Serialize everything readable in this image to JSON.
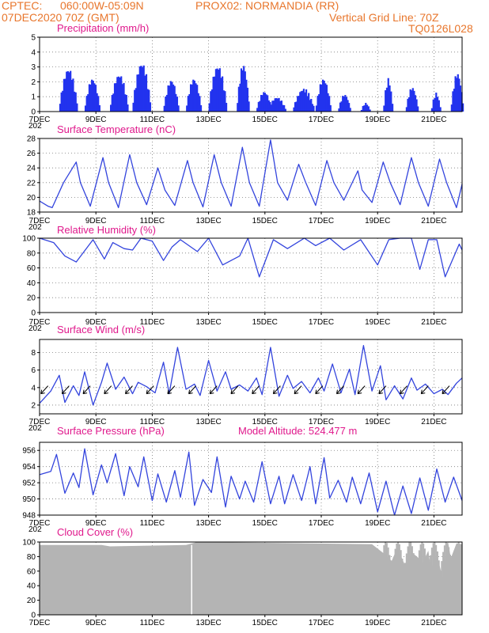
{
  "header": {
    "line1_left": "CPTEC:",
    "line1_coords": "060:00W-05:09N",
    "line1_station": "PROX02: NORMANDIA (RR)",
    "line2_left": "07DEC2020 70Z (GMT)",
    "line2_right": "Vertical Grid Line: 70Z",
    "line3_right": "TQ0126L028",
    "color": "#e8762c"
  },
  "colors": {
    "line": "#3344dd",
    "bar": "#2233ee",
    "title": "#e0198c",
    "cloud": "#b4b4b4"
  },
  "x_axis": {
    "ticks": [
      "7DEC",
      "9DEC",
      "11DEC",
      "13DEC",
      "15DEC",
      "17DEC",
      "19DEC",
      "21DEC"
    ],
    "sub_label": "202",
    "range_days": [
      0,
      15
    ]
  },
  "chart_data": [
    {
      "type": "bar",
      "id": "precip",
      "title": "Precipitation (mm/h)",
      "ylim": [
        0,
        5
      ],
      "yticks": [
        "0",
        "1",
        "2",
        "3",
        "4",
        "5"
      ],
      "x_unit": "days since 7DEC",
      "bursts": [
        {
          "start": 0.7,
          "end": 1.3,
          "peak": 3.0
        },
        {
          "start": 1.6,
          "end": 2.1,
          "peak": 2.3
        },
        {
          "start": 2.5,
          "end": 3.1,
          "peak": 2.6
        },
        {
          "start": 3.3,
          "end": 3.9,
          "peak": 3.4
        },
        {
          "start": 4.4,
          "end": 4.9,
          "peak": 2.2
        },
        {
          "start": 5.2,
          "end": 5.7,
          "peak": 2.3
        },
        {
          "start": 6.0,
          "end": 6.6,
          "peak": 3.2
        },
        {
          "start": 7.0,
          "end": 7.4,
          "peak": 3.3
        },
        {
          "start": 7.7,
          "end": 8.2,
          "peak": 1.4
        },
        {
          "start": 8.1,
          "end": 8.7,
          "peak": 1.0
        },
        {
          "start": 9.0,
          "end": 9.7,
          "peak": 1.6
        },
        {
          "start": 9.8,
          "end": 10.3,
          "peak": 2.3
        },
        {
          "start": 10.6,
          "end": 11.0,
          "peak": 1.2
        },
        {
          "start": 11.4,
          "end": 11.7,
          "peak": 0.6
        },
        {
          "start": 12.2,
          "end": 12.5,
          "peak": 2.3
        },
        {
          "start": 13.0,
          "end": 13.4,
          "peak": 1.7
        },
        {
          "start": 13.9,
          "end": 14.2,
          "peak": 1.3
        },
        {
          "start": 14.6,
          "end": 15.0,
          "peak": 2.7
        }
      ]
    },
    {
      "type": "line",
      "id": "temp",
      "title": "Surface Temperature (nC)",
      "ylim": [
        18,
        28
      ],
      "yticks": [
        "18",
        "20",
        "22",
        "24",
        "26",
        "28"
      ],
      "series": [
        {
          "x": [
            0,
            0.3,
            0.45,
            0.85,
            1.3,
            1.45,
            1.8,
            2.25,
            2.45,
            2.8,
            3.2,
            3.45,
            3.8,
            4.2,
            4.45,
            4.8,
            5.25,
            5.45,
            5.8,
            6.2,
            6.45,
            6.8,
            7.2,
            7.45,
            7.8,
            8.2,
            8.45,
            8.8,
            9.2,
            9.45,
            9.8,
            10.2,
            10.45,
            10.8,
            11.3,
            11.45,
            11.8,
            12.2,
            12.45,
            12.8,
            13.2,
            13.45,
            13.8,
            14.2,
            14.45,
            14.8,
            15.0
          ],
          "y": [
            19.5,
            18.8,
            18.6,
            22.0,
            24.8,
            22.0,
            18.8,
            25.4,
            22.0,
            18.6,
            25.8,
            22.0,
            19.0,
            24.0,
            21.0,
            18.9,
            25.0,
            22.0,
            18.7,
            25.8,
            22.0,
            18.8,
            26.8,
            22.0,
            18.8,
            27.8,
            22.0,
            19.6,
            24.5,
            22.0,
            18.9,
            25.0,
            22.0,
            19.6,
            23.6,
            21.0,
            19.3,
            24.8,
            22.0,
            19.0,
            25.4,
            22.0,
            18.8,
            25.2,
            22.0,
            18.6,
            21.8
          ]
        }
      ]
    },
    {
      "type": "line",
      "id": "rh",
      "title": "Relative Humidity (%)",
      "ylim": [
        0,
        100
      ],
      "yticks": [
        "0",
        "20",
        "40",
        "60",
        "80",
        "100"
      ],
      "series": [
        {
          "x": [
            0,
            0.5,
            0.9,
            1.3,
            1.9,
            2.3,
            2.6,
            3.0,
            3.3,
            3.6,
            4.0,
            4.4,
            4.7,
            5.0,
            5.6,
            6.0,
            6.5,
            7.1,
            7.4,
            7.8,
            8.3,
            8.8,
            9.4,
            9.8,
            10.3,
            10.8,
            11.4,
            12.0,
            12.4,
            12.8,
            13.2,
            13.5,
            13.8,
            14.1,
            14.4,
            14.9,
            15.0
          ],
          "y": [
            100,
            94,
            76,
            68,
            98,
            72,
            94,
            86,
            84,
            100,
            96,
            70,
            88,
            98,
            82,
            100,
            64,
            76,
            100,
            48,
            98,
            86,
            100,
            90,
            100,
            84,
            98,
            64,
            98,
            100,
            100,
            58,
            98,
            98,
            48,
            92,
            84
          ]
        }
      ]
    },
    {
      "type": "line",
      "id": "wind",
      "title": "Surface Wind (m/s)",
      "ylim": [
        1,
        9.5
      ],
      "yticks": [
        "2",
        "4",
        "6",
        "8"
      ],
      "series": [
        {
          "x": [
            0,
            0.4,
            0.7,
            0.9,
            1.2,
            1.4,
            1.6,
            1.9,
            2.2,
            2.4,
            2.7,
            3.0,
            3.3,
            3.5,
            3.8,
            4.1,
            4.4,
            4.6,
            4.9,
            5.2,
            5.5,
            5.7,
            6.0,
            6.3,
            6.6,
            6.8,
            7.1,
            7.4,
            7.7,
            7.9,
            8.2,
            8.5,
            8.8,
            9.0,
            9.3,
            9.6,
            9.9,
            10.1,
            10.4,
            10.7,
            11.0,
            11.2,
            11.5,
            11.8,
            12.1,
            12.3,
            12.6,
            12.9,
            13.2,
            13.4,
            13.7,
            14.0,
            14.3,
            14.5,
            14.8,
            15.0
          ],
          "y": [
            2.2,
            3.6,
            5.4,
            2.3,
            4.2,
            3.1,
            5.8,
            2.0,
            4.6,
            6.8,
            3.8,
            5.2,
            3.3,
            4.6,
            4.1,
            3.4,
            6.9,
            3.3,
            8.6,
            3.8,
            4.4,
            3.1,
            7.1,
            3.6,
            5.8,
            3.8,
            4.3,
            3.6,
            5.1,
            3.2,
            8.6,
            3.0,
            5.4,
            3.9,
            4.7,
            3.4,
            5.1,
            3.6,
            6.7,
            3.4,
            6.1,
            3.2,
            8.8,
            3.6,
            6.5,
            2.6,
            4.2,
            2.7,
            5.1,
            3.7,
            4.4,
            3.3,
            3.8,
            3.2,
            4.5,
            5.1
          ]
        }
      ]
    },
    {
      "type": "line",
      "id": "pressure",
      "title": "Surface Pressure (hPa)",
      "annotation": "Model Altitude: 524.477 m",
      "ylim": [
        948,
        957
      ],
      "yticks": [
        "948",
        "950",
        "952",
        "954",
        "956"
      ],
      "series": [
        {
          "x": [
            0,
            0.4,
            0.6,
            0.9,
            1.2,
            1.4,
            1.6,
            1.9,
            2.2,
            2.4,
            2.7,
            3.0,
            3.2,
            3.5,
            3.7,
            4.0,
            4.2,
            4.5,
            4.8,
            5.0,
            5.3,
            5.5,
            5.8,
            6.1,
            6.3,
            6.6,
            6.8,
            7.1,
            7.3,
            7.6,
            7.9,
            8.2,
            8.5,
            8.7,
            9.0,
            9.3,
            9.6,
            9.8,
            10.1,
            10.3,
            10.6,
            10.9,
            11.1,
            11.4,
            11.7,
            12.0,
            12.3,
            12.6,
            12.9,
            13.2,
            13.5,
            13.8,
            14.1,
            14.4,
            14.7,
            15.0
          ],
          "y": [
            953.0,
            953.4,
            955.5,
            950.7,
            953.2,
            951.4,
            956.2,
            950.5,
            954.2,
            952.0,
            955.6,
            950.4,
            954.0,
            951.5,
            955.2,
            949.8,
            953.1,
            949.6,
            953.5,
            950.2,
            955.8,
            949.2,
            952.4,
            950.8,
            955.2,
            949.0,
            952.8,
            950.0,
            952.2,
            949.6,
            954.6,
            949.4,
            952.8,
            949.4,
            953.0,
            949.8,
            954.0,
            949.4,
            955.1,
            950.1,
            952.3,
            949.6,
            952.7,
            949.4,
            953.2,
            948.4,
            952.2,
            948.0,
            951.6,
            948.2,
            952.6,
            948.6,
            953.7,
            949.6,
            952.7,
            949.8
          ]
        }
      ]
    },
    {
      "type": "area",
      "id": "cloud",
      "title": "Cloud Cover (%)",
      "ylim": [
        0,
        100
      ],
      "yticks": [
        "0",
        "20",
        "40",
        "60",
        "80",
        "100"
      ],
      "series": [
        {
          "x": [
            0,
            2.2,
            2.5,
            5.2,
            5.6,
            11.8,
            11.9,
            12.3,
            12.5,
            12.7,
            13.0,
            13.2,
            13.4,
            13.6,
            13.8,
            13.9,
            14.1,
            14.3,
            14.5,
            14.6,
            14.8,
            15.0
          ],
          "y": [
            96,
            96,
            94,
            96,
            100,
            97,
            94,
            82,
            74,
            92,
            66,
            86,
            80,
            72,
            88,
            62,
            84,
            52,
            100,
            78,
            98,
            97
          ]
        }
      ],
      "gap_at": 5.4
    }
  ]
}
